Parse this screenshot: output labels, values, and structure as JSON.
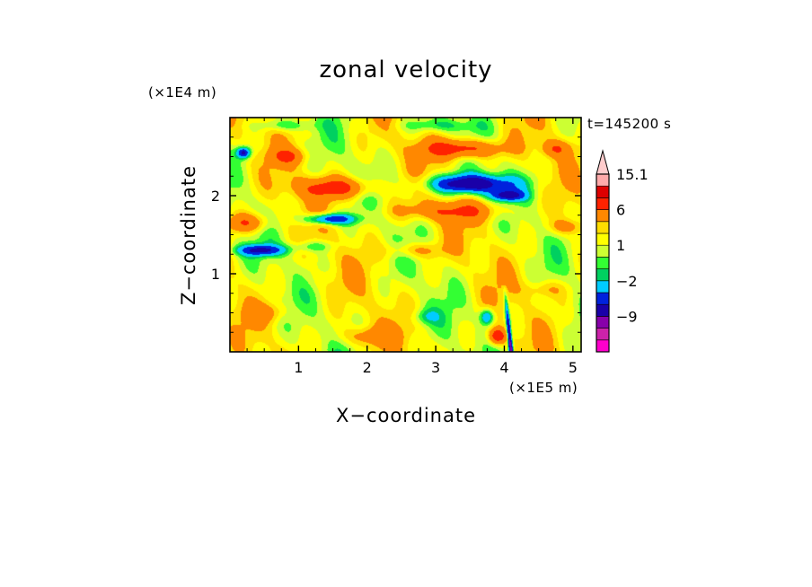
{
  "chart_data": {
    "type": "heatmap",
    "title": "zonal velocity",
    "xlabel": "X−coordinate",
    "ylabel": "Z−coordinate",
    "x_unit": "(×1E5 m)",
    "y_unit": "(×1E4 m)",
    "time_label": "t=145200 s",
    "xlim": [
      0,
      5.12
    ],
    "ylim": [
      0,
      3.0
    ],
    "x_ticks": [
      "1",
      "2",
      "3",
      "4",
      "5"
    ],
    "x_tick_values": [
      1,
      2,
      3,
      4,
      5
    ],
    "y_ticks": [
      "1",
      "2"
    ],
    "y_tick_values": [
      1,
      2
    ],
    "colorbar": {
      "labels": [
        {
          "text": "15.1",
          "value": 15.1
        },
        {
          "text": "6",
          "value": 6
        },
        {
          "text": "1",
          "value": 1
        },
        {
          "text": "−2",
          "value": -2
        },
        {
          "text": "−9",
          "value": -9
        }
      ],
      "levels": [
        -16,
        -12,
        -9,
        -6,
        -4,
        -2,
        -1,
        0,
        1,
        2,
        3,
        6,
        9,
        12,
        15.1
      ],
      "colors": [
        "#ff00cc",
        "#cc22aa",
        "#8800aa",
        "#1a00a8",
        "#0022dd",
        "#00ccff",
        "#00d060",
        "#33ff33",
        "#ccff33",
        "#ffff00",
        "#ffdd00",
        "#ff8800",
        "#ff2200",
        "#dd0000",
        "#ffaaaa",
        "#ffcccc"
      ]
    },
    "blobs": [
      {
        "x": 3.4,
        "z": 2.6,
        "sx": 0.55,
        "sz": 0.12,
        "v": 7
      },
      {
        "x": 3.5,
        "z": 2.15,
        "sx": 0.6,
        "sz": 0.12,
        "v": -10
      },
      {
        "x": 4.05,
        "z": 2.0,
        "sx": 0.25,
        "sz": 0.07,
        "v": -7
      },
      {
        "x": 1.55,
        "z": 2.1,
        "sx": 0.55,
        "sz": 0.13,
        "v": 6
      },
      {
        "x": 0.85,
        "z": 2.5,
        "sx": 0.25,
        "sz": 0.1,
        "v": 4
      },
      {
        "x": 1.45,
        "z": 1.7,
        "sx": 0.35,
        "sz": 0.07,
        "v": -8
      },
      {
        "x": 0.25,
        "z": 1.65,
        "sx": 0.3,
        "sz": 0.12,
        "v": 5
      },
      {
        "x": 0.45,
        "z": 1.3,
        "sx": 0.35,
        "sz": 0.07,
        "v": -7
      },
      {
        "x": 3.2,
        "z": 1.8,
        "sx": 0.8,
        "sz": 0.12,
        "v": 4
      },
      {
        "x": 4.9,
        "z": 1.6,
        "sx": 0.25,
        "sz": 0.1,
        "v": 3
      },
      {
        "x": 0.2,
        "z": 2.55,
        "sx": 0.1,
        "sz": 0.07,
        "v": -8
      },
      {
        "x": 4.75,
        "z": 2.6,
        "sx": 0.2,
        "sz": 0.1,
        "v": 4
      },
      {
        "x": 2.7,
        "z": 1.3,
        "sx": 0.4,
        "sz": 0.1,
        "v": 3
      },
      {
        "x": 1.2,
        "z": 1.35,
        "sx": 0.3,
        "sz": 0.07,
        "v": -2.5
      },
      {
        "x": 0.55,
        "z": 0.5,
        "sx": 0.3,
        "sz": 0.12,
        "v": 2.5
      },
      {
        "x": 2.0,
        "z": 0.2,
        "sx": 0.4,
        "sz": 0.12,
        "v": 3
      },
      {
        "x": 3.75,
        "z": 0.45,
        "sx": 0.1,
        "sz": 0.1,
        "v": -6
      },
      {
        "x": 3.9,
        "z": 0.2,
        "sx": 0.12,
        "sz": 0.1,
        "v": 8
      },
      {
        "x": 2.85,
        "z": 0.45,
        "sx": 0.2,
        "sz": 0.1,
        "v": -2.5
      },
      {
        "x": 4.6,
        "z": 0.8,
        "sx": 0.3,
        "sz": 0.12,
        "v": 2.5
      },
      {
        "x": 1.3,
        "z": 0.9,
        "sx": 0.35,
        "sz": 0.12,
        "v": 0.5
      },
      {
        "x": 3.0,
        "z": 2.9,
        "sx": 0.5,
        "sz": 0.08,
        "v": -2.5
      },
      {
        "x": 0.8,
        "z": 2.9,
        "sx": 0.4,
        "sz": 0.07,
        "v": -2.5
      }
    ]
  }
}
